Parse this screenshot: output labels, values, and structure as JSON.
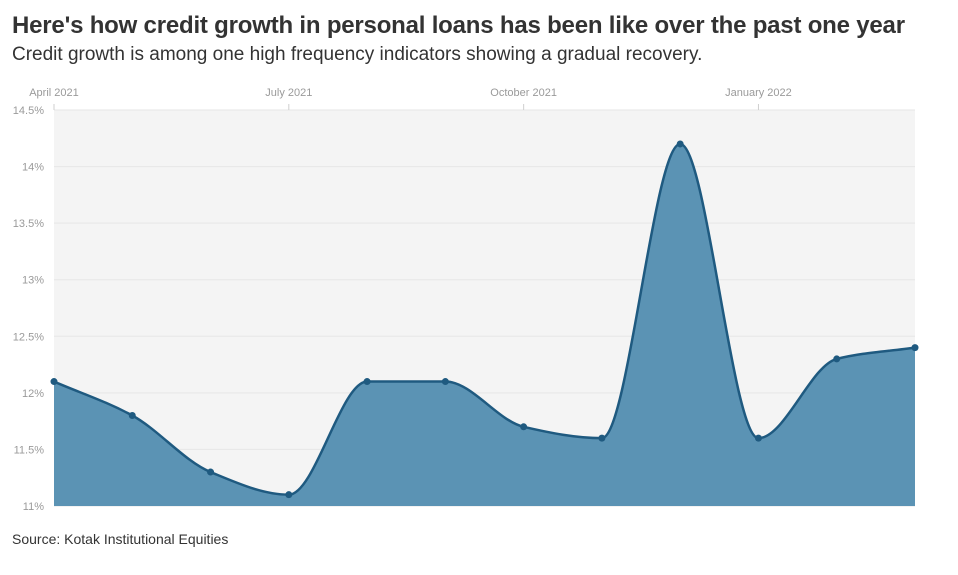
{
  "title": "Here's how credit growth in personal loans has been like over the past one year",
  "subtitle": "Credit growth is among one high frequency indicators showing a gradual recovery.",
  "source": "Source: Kotak Institutional Equities",
  "chart_data": {
    "type": "area",
    "x": [
      "2021-04",
      "2021-05",
      "2021-06",
      "2021-07",
      "2021-08",
      "2021-09",
      "2021-10",
      "2021-11",
      "2021-12",
      "2022-01",
      "2022-02",
      "2022-03"
    ],
    "series": [
      {
        "values": [
          12.1,
          11.8,
          11.3,
          11.1,
          12.1,
          12.1,
          11.7,
          11.6,
          14.2,
          11.6,
          12.3,
          12.4
        ]
      }
    ],
    "x_tick_labels": [
      "April 2021",
      "July 2021",
      "October 2021",
      "January 2022"
    ],
    "x_tick_index": [
      0,
      3,
      6,
      9
    ],
    "y_tick_values": [
      11,
      11.5,
      12,
      12.5,
      13,
      13.5,
      14,
      14.5
    ],
    "y_tick_labels": [
      "11%",
      "11.5%",
      "12%",
      "12.5%",
      "13%",
      "13.5%",
      "14%",
      "14.5%"
    ],
    "ylim": [
      11,
      14.5
    ],
    "grid": true,
    "x_axis_position": "top",
    "colors": {
      "fill": "#5b93b4",
      "line": "#1f5a80",
      "plot_bg": "#f4f4f4",
      "grid": "#e6e6e6"
    }
  }
}
